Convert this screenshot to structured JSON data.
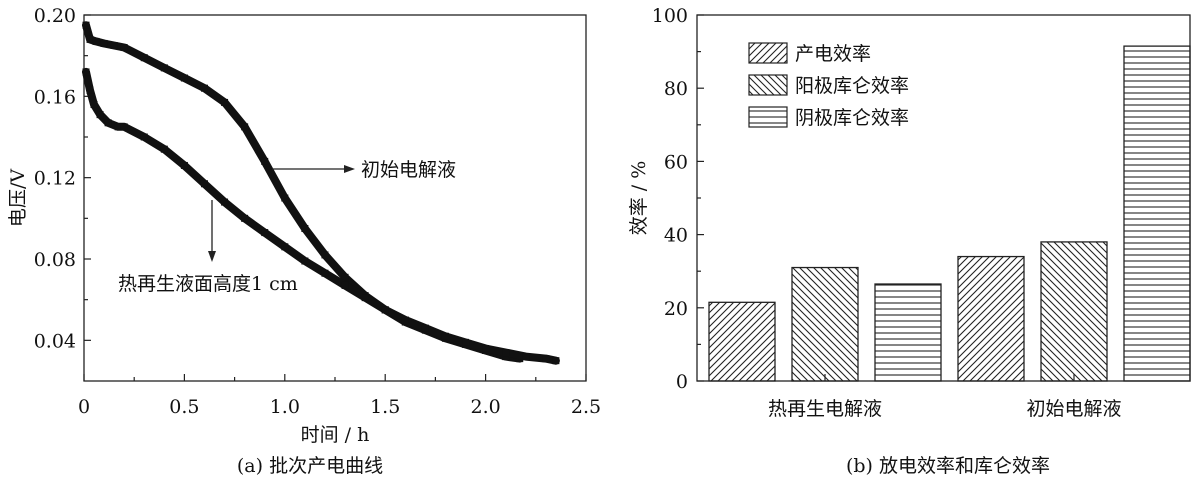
{
  "chart_data": [
    {
      "type": "line",
      "caption": "(a) 批次产电曲线",
      "xlabel": "时间 / h",
      "ylabel": "电压/V",
      "xlim": [
        0,
        2.5
      ],
      "ylim": [
        0.02,
        0.2
      ],
      "xticks": [
        "0",
        "0.5",
        "1.0",
        "1.5",
        "2.0",
        "2.5"
      ],
      "yticks": [
        "0.04",
        "0.08",
        "0.12",
        "0.16",
        "0.20"
      ],
      "series": [
        {
          "name": "初始电解液",
          "x": [
            0.01,
            0.03,
            0.06,
            0.1,
            0.15,
            0.2,
            0.3,
            0.4,
            0.5,
            0.6,
            0.7,
            0.8,
            0.9,
            1.0,
            1.1,
            1.2,
            1.3,
            1.4,
            1.5,
            1.6,
            1.7,
            1.8,
            1.9,
            2.0,
            2.1,
            2.17
          ],
          "y": [
            0.195,
            0.188,
            0.187,
            0.186,
            0.185,
            0.184,
            0.179,
            0.174,
            0.169,
            0.164,
            0.157,
            0.145,
            0.128,
            0.11,
            0.095,
            0.082,
            0.071,
            0.062,
            0.055,
            0.049,
            0.045,
            0.041,
            0.038,
            0.035,
            0.032,
            0.031
          ]
        },
        {
          "name": "热再生液面高度1 cm",
          "x": [
            0.01,
            0.03,
            0.05,
            0.08,
            0.12,
            0.17,
            0.2,
            0.3,
            0.4,
            0.5,
            0.6,
            0.7,
            0.8,
            0.9,
            1.0,
            1.1,
            1.2,
            1.3,
            1.4,
            1.5,
            1.6,
            1.7,
            1.8,
            1.9,
            2.0,
            2.1,
            2.2,
            2.3,
            2.35
          ],
          "y": [
            0.172,
            0.163,
            0.156,
            0.151,
            0.147,
            0.145,
            0.145,
            0.14,
            0.134,
            0.126,
            0.117,
            0.108,
            0.1,
            0.093,
            0.086,
            0.079,
            0.073,
            0.067,
            0.061,
            0.055,
            0.05,
            0.046,
            0.042,
            0.039,
            0.036,
            0.034,
            0.032,
            0.031,
            0.03
          ]
        }
      ],
      "annotations": [
        "初始电解液",
        "热再生液面高度1 cm"
      ]
    },
    {
      "type": "bar",
      "caption": "(b) 放电效率和库仑效率",
      "ylabel": "效率 / %",
      "ylim": [
        0,
        100
      ],
      "yticks": [
        "0",
        "20",
        "40",
        "60",
        "80",
        "100"
      ],
      "categories": [
        "热再生电解液",
        "初始电解液"
      ],
      "series": [
        {
          "name": "产电效率",
          "pattern": "diagonal-up",
          "values": [
            21.5,
            34.0
          ]
        },
        {
          "name": "阳极库仑效率",
          "pattern": "diagonal-down",
          "values": [
            31.0,
            38.0
          ]
        },
        {
          "name": "阴极库仑效率",
          "pattern": "horizontal",
          "values": [
            26.5,
            91.5
          ]
        }
      ],
      "legend_position": "top-left"
    }
  ]
}
